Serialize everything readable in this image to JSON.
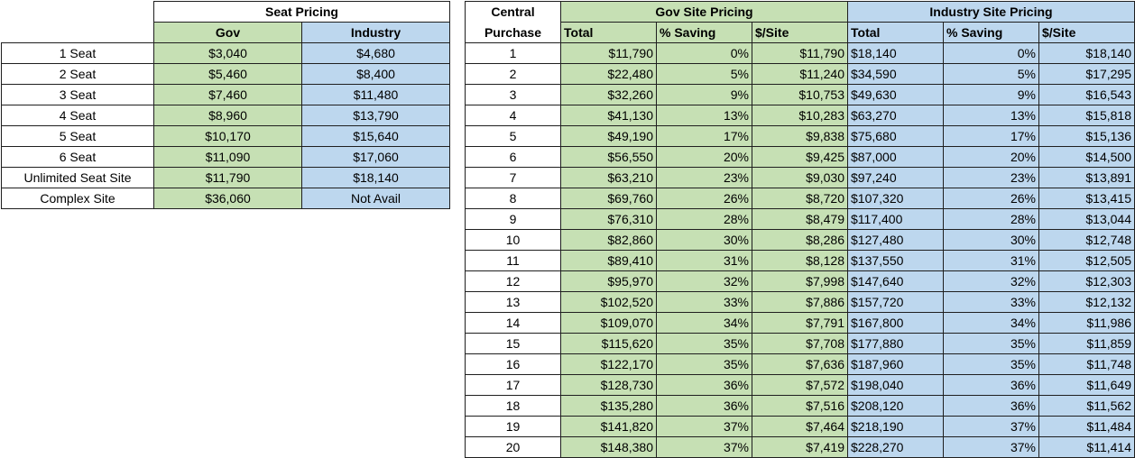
{
  "seat_pricing": {
    "title": "Seat Pricing",
    "col_gov": "Gov",
    "col_industry": "Industry",
    "rows": [
      {
        "label": "1 Seat",
        "gov": "$3,040",
        "industry": "$4,680"
      },
      {
        "label": "2 Seat",
        "gov": "$5,460",
        "industry": "$8,400"
      },
      {
        "label": "3 Seat",
        "gov": "$7,460",
        "industry": "$11,480"
      },
      {
        "label": "4 Seat",
        "gov": "$8,960",
        "industry": "$13,790"
      },
      {
        "label": "5 Seat",
        "gov": "$10,170",
        "industry": "$15,640"
      },
      {
        "label": "6 Seat",
        "gov": "$11,090",
        "industry": "$17,060"
      },
      {
        "label": "Unlimited Seat Site",
        "gov": "$11,790",
        "industry": "$18,140"
      },
      {
        "label": "Complex Site",
        "gov": "$36,060",
        "industry": "Not Avail"
      }
    ]
  },
  "site_pricing": {
    "central_line1": "Central",
    "central_line2": "Purchase",
    "gov_title": "Gov Site Pricing",
    "industry_title": "Industry Site Pricing",
    "col_total": "Total",
    "col_saving": "% Saving",
    "col_per_site": "$/Site",
    "rows": [
      {
        "n": "1",
        "gov_total": "$11,790",
        "gov_saving": "0%",
        "gov_per": "$11,790",
        "ind_total": "$18,140",
        "ind_saving": "0%",
        "ind_per": "$18,140"
      },
      {
        "n": "2",
        "gov_total": "$22,480",
        "gov_saving": "5%",
        "gov_per": "$11,240",
        "ind_total": "$34,590",
        "ind_saving": "5%",
        "ind_per": "$17,295"
      },
      {
        "n": "3",
        "gov_total": "$32,260",
        "gov_saving": "9%",
        "gov_per": "$10,753",
        "ind_total": "$49,630",
        "ind_saving": "9%",
        "ind_per": "$16,543"
      },
      {
        "n": "4",
        "gov_total": "$41,130",
        "gov_saving": "13%",
        "gov_per": "$10,283",
        "ind_total": "$63,270",
        "ind_saving": "13%",
        "ind_per": "$15,818"
      },
      {
        "n": "5",
        "gov_total": "$49,190",
        "gov_saving": "17%",
        "gov_per": "$9,838",
        "ind_total": "$75,680",
        "ind_saving": "17%",
        "ind_per": "$15,136"
      },
      {
        "n": "6",
        "gov_total": "$56,550",
        "gov_saving": "20%",
        "gov_per": "$9,425",
        "ind_total": "$87,000",
        "ind_saving": "20%",
        "ind_per": "$14,500"
      },
      {
        "n": "7",
        "gov_total": "$63,210",
        "gov_saving": "23%",
        "gov_per": "$9,030",
        "ind_total": "$97,240",
        "ind_saving": "23%",
        "ind_per": "$13,891"
      },
      {
        "n": "8",
        "gov_total": "$69,760",
        "gov_saving": "26%",
        "gov_per": "$8,720",
        "ind_total": "$107,320",
        "ind_saving": "26%",
        "ind_per": "$13,415"
      },
      {
        "n": "9",
        "gov_total": "$76,310",
        "gov_saving": "28%",
        "gov_per": "$8,479",
        "ind_total": "$117,400",
        "ind_saving": "28%",
        "ind_per": "$13,044"
      },
      {
        "n": "10",
        "gov_total": "$82,860",
        "gov_saving": "30%",
        "gov_per": "$8,286",
        "ind_total": "$127,480",
        "ind_saving": "30%",
        "ind_per": "$12,748"
      },
      {
        "n": "11",
        "gov_total": "$89,410",
        "gov_saving": "31%",
        "gov_per": "$8,128",
        "ind_total": "$137,550",
        "ind_saving": "31%",
        "ind_per": "$12,505"
      },
      {
        "n": "12",
        "gov_total": "$95,970",
        "gov_saving": "32%",
        "gov_per": "$7,998",
        "ind_total": "$147,640",
        "ind_saving": "32%",
        "ind_per": "$12,303"
      },
      {
        "n": "13",
        "gov_total": "$102,520",
        "gov_saving": "33%",
        "gov_per": "$7,886",
        "ind_total": "$157,720",
        "ind_saving": "33%",
        "ind_per": "$12,132"
      },
      {
        "n": "14",
        "gov_total": "$109,070",
        "gov_saving": "34%",
        "gov_per": "$7,791",
        "ind_total": "$167,800",
        "ind_saving": "34%",
        "ind_per": "$11,986"
      },
      {
        "n": "15",
        "gov_total": "$115,620",
        "gov_saving": "35%",
        "gov_per": "$7,708",
        "ind_total": "$177,880",
        "ind_saving": "35%",
        "ind_per": "$11,859"
      },
      {
        "n": "16",
        "gov_total": "$122,170",
        "gov_saving": "35%",
        "gov_per": "$7,636",
        "ind_total": "$187,960",
        "ind_saving": "35%",
        "ind_per": "$11,748"
      },
      {
        "n": "17",
        "gov_total": "$128,730",
        "gov_saving": "36%",
        "gov_per": "$7,572",
        "ind_total": "$198,040",
        "ind_saving": "36%",
        "ind_per": "$11,649"
      },
      {
        "n": "18",
        "gov_total": "$135,280",
        "gov_saving": "36%",
        "gov_per": "$7,516",
        "ind_total": "$208,120",
        "ind_saving": "36%",
        "ind_per": "$11,562"
      },
      {
        "n": "19",
        "gov_total": "$141,820",
        "gov_saving": "37%",
        "gov_per": "$7,464",
        "ind_total": "$218,190",
        "ind_saving": "37%",
        "ind_per": "$11,484"
      },
      {
        "n": "20",
        "gov_total": "$148,380",
        "gov_saving": "37%",
        "gov_per": "$7,419",
        "ind_total": "$228,270",
        "ind_saving": "37%",
        "ind_per": "$11,414"
      }
    ]
  },
  "colors": {
    "gov_fill": "#c6e0b4",
    "industry_fill": "#bdd7ee",
    "grid_line": "#1f1f1f"
  }
}
